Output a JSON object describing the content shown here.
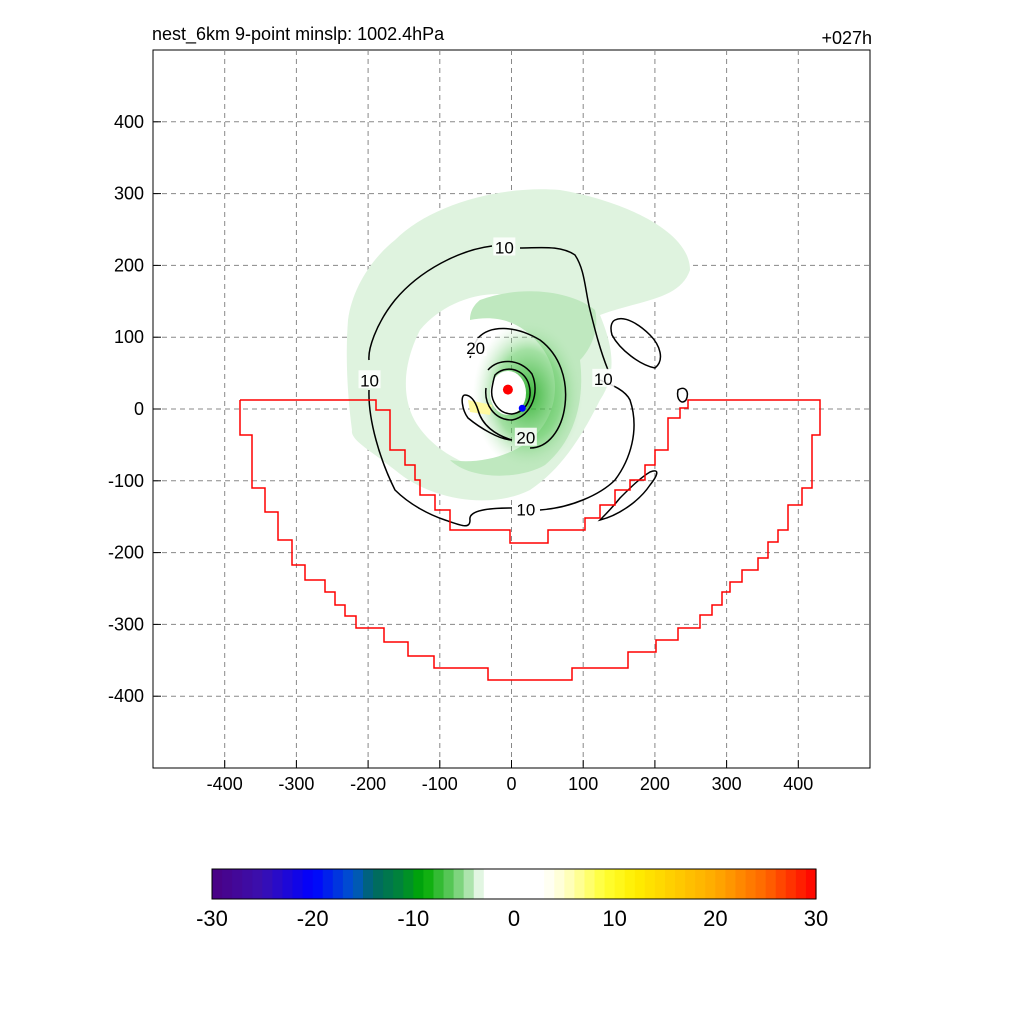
{
  "chart_data": {
    "type": "heatmap",
    "title_left": "nest_6km  9-point minslp: 1002.4hPa",
    "title_right": "+027h",
    "xlim": [
      -500,
      500
    ],
    "ylim": [
      -500,
      500
    ],
    "x_ticks": [
      -400,
      -300,
      -200,
      -100,
      0,
      100,
      200,
      300,
      400
    ],
    "y_ticks": [
      400,
      300,
      200,
      100,
      0,
      -100,
      -200,
      -300,
      -400
    ],
    "grid": true,
    "colorbar": {
      "ticks": [
        "-30",
        "-20",
        "-10",
        "0",
        "10",
        "20",
        "30"
      ],
      "range": [
        -30,
        30
      ],
      "colors": [
        "#4b0082",
        "#0000ff",
        "#006666",
        "#00aa00",
        "#ffffff",
        "#ffff00",
        "#ffa500",
        "#ff0000"
      ]
    },
    "contour_labels": [
      {
        "text": "10",
        "x": -10,
        "y": 225
      },
      {
        "text": "10",
        "x": -198,
        "y": 40
      },
      {
        "text": "10",
        "x": 128,
        "y": 42
      },
      {
        "text": "10",
        "x": 20,
        "y": -140
      },
      {
        "text": "20",
        "x": -50,
        "y": 85
      },
      {
        "text": "20",
        "x": 20,
        "y": -40
      }
    ],
    "markers": [
      {
        "label": "center",
        "x": -5,
        "y": 27,
        "color": "#ff0000"
      },
      {
        "label": "secondary",
        "x": 15,
        "y": 1,
        "color": "#0000ff"
      }
    ]
  }
}
